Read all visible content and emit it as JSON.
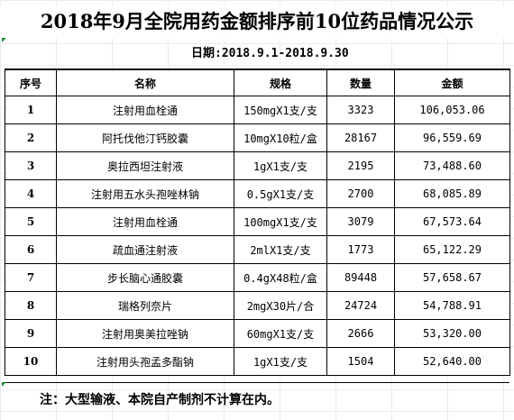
{
  "title": "2018年9月全院用药金额排序前10位药品情况公示",
  "date_label": "日期:2018.9.1-2018.9.30",
  "note": "注：大型输液、本院自产制剂不计算在内。",
  "chart_data": {
    "type": "table",
    "columns": [
      "序号",
      "名称",
      "规格",
      "数量",
      "金额"
    ],
    "rows": [
      {
        "idx": "1",
        "name": "注射用血栓通",
        "spec": "150mgX1支/支",
        "qty": "3323",
        "amount": "106,053.06"
      },
      {
        "idx": "2",
        "name": "阿托伐他汀钙胶囊",
        "spec": "10mgX10粒/盒",
        "qty": "28167",
        "amount": "96,559.69"
      },
      {
        "idx": "3",
        "name": "奥拉西坦注射液",
        "spec": "1gX1支/支",
        "qty": "2195",
        "amount": "73,488.60"
      },
      {
        "idx": "4",
        "name": "注射用五水头孢唑林钠",
        "spec": "0.5gX1支/支",
        "qty": "2700",
        "amount": "68,085.89"
      },
      {
        "idx": "5",
        "name": "注射用血栓通",
        "spec": "100mgX1支/支",
        "qty": "3079",
        "amount": "67,573.64"
      },
      {
        "idx": "6",
        "name": "疏血通注射液",
        "spec": "2mlX1支/支",
        "qty": "1773",
        "amount": "65,122.29"
      },
      {
        "idx": "7",
        "name": "步长脑心通胶囊",
        "spec": "0.4gX48粒/盒",
        "qty": "89448",
        "amount": "57,658.67"
      },
      {
        "idx": "8",
        "name": "瑞格列奈片",
        "spec": "2mgX30片/合",
        "qty": "24724",
        "amount": "54,788.91"
      },
      {
        "idx": "9",
        "name": "注射用奥美拉唑钠",
        "spec": "60mgX1支/支",
        "qty": "2666",
        "amount": "53,320.00"
      },
      {
        "idx": "10",
        "name": "注射用头孢孟多酯钠",
        "spec": "1gX1支/支",
        "qty": "1504",
        "amount": "52,640.00"
      }
    ]
  }
}
